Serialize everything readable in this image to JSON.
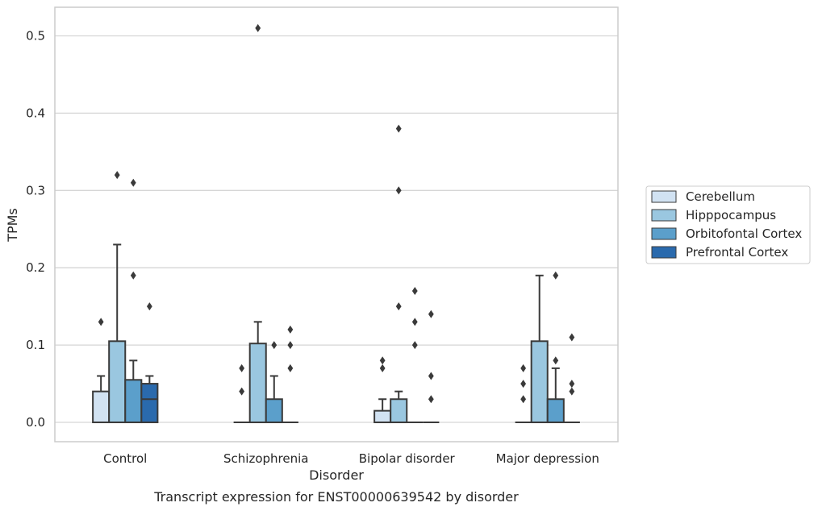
{
  "chart_data": {
    "type": "boxplot",
    "title": "",
    "caption": "Transcript expression for ENST00000639542 by disorder",
    "xlabel": "Disorder",
    "ylabel": "TPMs",
    "ylim": [
      -0.025,
      0.537
    ],
    "yticks": [
      0.0,
      0.1,
      0.2,
      0.3,
      0.4,
      0.5
    ],
    "ytick_labels": [
      "0.0",
      "0.1",
      "0.2",
      "0.3",
      "0.4",
      "0.5"
    ],
    "grid": "horizontal",
    "legend_position": "right",
    "categories": [
      "Control",
      "Schizophrenia",
      "Bipolar disorder",
      "Major depression"
    ],
    "series": [
      {
        "name": "Cerebellum",
        "color": "#d1e2f2",
        "boxes": [
          {
            "category": "Control",
            "low": 0.0,
            "q1": 0.0,
            "median": 0.0,
            "q3": 0.04,
            "high": 0.06,
            "outliers": [
              0.13
            ]
          },
          {
            "category": "Schizophrenia",
            "low": 0.0,
            "q1": 0.0,
            "median": 0.0,
            "q3": 0.0,
            "high": 0.0,
            "outliers": [
              0.04,
              0.07
            ]
          },
          {
            "category": "Bipolar disorder",
            "low": 0.0,
            "q1": 0.0,
            "median": 0.0,
            "q3": 0.015,
            "high": 0.03,
            "outliers": [
              0.07,
              0.08
            ]
          },
          {
            "category": "Major depression",
            "low": 0.0,
            "q1": 0.0,
            "median": 0.0,
            "q3": 0.0,
            "high": 0.0,
            "outliers": [
              0.03,
              0.05,
              0.07
            ]
          }
        ]
      },
      {
        "name": "Hipppocampus",
        "color": "#9ac7e0",
        "boxes": [
          {
            "category": "Control",
            "low": 0.0,
            "q1": 0.0,
            "median": 0.0,
            "q3": 0.105,
            "high": 0.23,
            "outliers": [
              0.32
            ]
          },
          {
            "category": "Schizophrenia",
            "low": 0.0,
            "q1": 0.0,
            "median": 0.0,
            "q3": 0.102,
            "high": 0.13,
            "outliers": [
              0.51
            ]
          },
          {
            "category": "Bipolar disorder",
            "low": 0.0,
            "q1": 0.0,
            "median": 0.0,
            "q3": 0.03,
            "high": 0.04,
            "outliers": [
              0.15,
              0.3,
              0.38
            ]
          },
          {
            "category": "Major depression",
            "low": 0.0,
            "q1": 0.0,
            "median": 0.0,
            "q3": 0.105,
            "high": 0.19,
            "outliers": []
          }
        ]
      },
      {
        "name": "Orbitofontal Cortex",
        "color": "#5b9fcb",
        "boxes": [
          {
            "category": "Control",
            "low": 0.0,
            "q1": 0.0,
            "median": 0.0,
            "q3": 0.055,
            "high": 0.08,
            "outliers": [
              0.19,
              0.31
            ]
          },
          {
            "category": "Schizophrenia",
            "low": 0.0,
            "q1": 0.0,
            "median": 0.0,
            "q3": 0.03,
            "high": 0.06,
            "outliers": [
              0.1
            ]
          },
          {
            "category": "Bipolar disorder",
            "low": 0.0,
            "q1": 0.0,
            "median": 0.0,
            "q3": 0.0,
            "high": 0.0,
            "outliers": [
              0.1,
              0.13,
              0.17
            ]
          },
          {
            "category": "Major depression",
            "low": 0.0,
            "q1": 0.0,
            "median": 0.0,
            "q3": 0.03,
            "high": 0.07,
            "outliers": [
              0.08,
              0.19
            ]
          }
        ]
      },
      {
        "name": "Prefrontal Cortex",
        "color": "#2a6aad",
        "boxes": [
          {
            "category": "Control",
            "low": 0.0,
            "q1": 0.0,
            "median": 0.03,
            "q3": 0.05,
            "high": 0.06,
            "outliers": [
              0.15
            ]
          },
          {
            "category": "Schizophrenia",
            "low": 0.0,
            "q1": 0.0,
            "median": 0.0,
            "q3": 0.0,
            "high": 0.0,
            "outliers": [
              0.07,
              0.1,
              0.12
            ]
          },
          {
            "category": "Bipolar disorder",
            "low": 0.0,
            "q1": 0.0,
            "median": 0.0,
            "q3": 0.0,
            "high": 0.0,
            "outliers": [
              0.03,
              0.06,
              0.14
            ]
          },
          {
            "category": "Major depression",
            "low": 0.0,
            "q1": 0.0,
            "median": 0.0,
            "q3": 0.0,
            "high": 0.0,
            "outliers": [
              0.04,
              0.05,
              0.11
            ]
          }
        ]
      }
    ]
  }
}
